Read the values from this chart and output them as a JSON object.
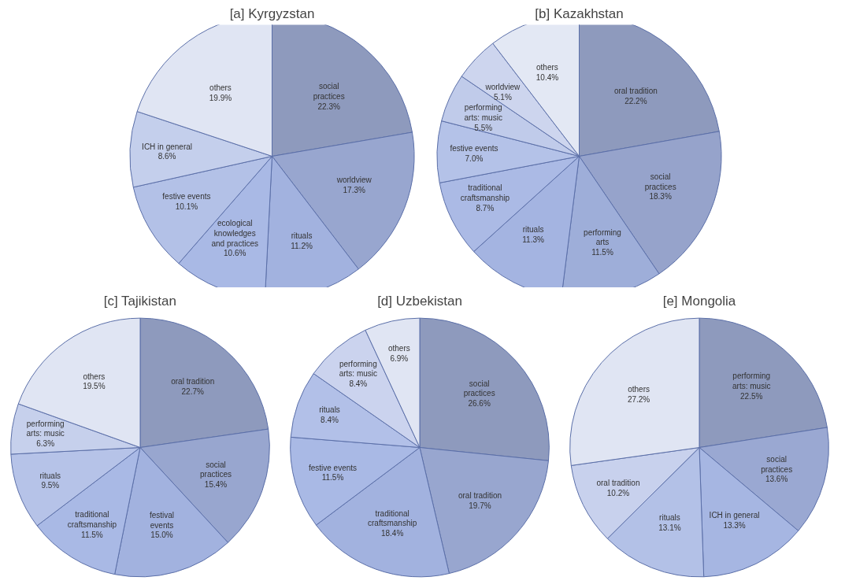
{
  "chart_data": [
    {
      "type": "pie",
      "title": "[a] Kyrgyzstan",
      "categories": [
        "social practices",
        "worldview",
        "rituals",
        "ecological knowledges and practices",
        "festive events",
        "ICH in general",
        "others"
      ],
      "values": [
        22.3,
        17.3,
        11.2,
        10.6,
        10.1,
        8.6,
        19.9
      ],
      "value_labels": [
        "22.3%",
        "17.3%",
        "11.2%",
        "10.6%",
        "10.1%",
        "8.6%",
        "19.9%"
      ],
      "colors": [
        "#8e9abd",
        "#98a6cf",
        "#a2b2df",
        "#a9b9e5",
        "#b3c1e7",
        "#c4cfec",
        "#e0e5f3"
      ]
    },
    {
      "type": "pie",
      "title": "[b] Kazakhstan",
      "categories": [
        "oral tradition",
        "social practices",
        "performing arts",
        "rituals",
        "traditional craftsmanship",
        "festive events",
        "performing arts: music",
        "worldview",
        "others"
      ],
      "values": [
        22.2,
        18.3,
        11.5,
        11.3,
        8.7,
        7.0,
        5.5,
        5.1,
        10.4
      ],
      "value_labels": [
        "22.2%",
        "18.3%",
        "11.5%",
        "11.3%",
        "8.7%",
        "7.0%",
        "5.5%",
        "5.1%",
        "10.4%"
      ],
      "colors": [
        "#8e9abd",
        "#96a3cb",
        "#9eaed9",
        "#a4b4e1",
        "#abbae5",
        "#b4c2e8",
        "#c0cbea",
        "#cdd5ee",
        "#e3e8f4"
      ]
    },
    {
      "type": "pie",
      "title": "[c] Tajikistan",
      "categories": [
        "oral tradition",
        "social practices",
        "festival events",
        "traditional craftsmanship",
        "rituals",
        "performing arts: music",
        "others"
      ],
      "values": [
        22.7,
        15.4,
        15.0,
        11.5,
        9.5,
        6.3,
        19.5
      ],
      "value_labels": [
        "22.7%",
        "15.4%",
        "15.0%",
        "11.5%",
        "9.5%",
        "6.3%",
        "19.5%"
      ],
      "colors": [
        "#8e9abd",
        "#98a6cf",
        "#a2b2df",
        "#a9b9e5",
        "#b6c3e8",
        "#c6d0ec",
        "#e0e5f3"
      ]
    },
    {
      "type": "pie",
      "title": "[d] Uzbekistan",
      "categories": [
        "social practices",
        "oral tradition",
        "traditional craftsmanship",
        "festive events",
        "rituals",
        "performing arts: music",
        "others"
      ],
      "values": [
        26.6,
        19.7,
        18.4,
        11.5,
        8.4,
        8.4,
        6.9
      ],
      "value_labels": [
        "26.6%",
        "19.7%",
        "18.4%",
        "11.5%",
        "8.4%",
        "8.4%",
        "6.9%"
      ],
      "colors": [
        "#8e9abd",
        "#98a6cf",
        "#a2b2df",
        "#a9b9e5",
        "#b2c0e8",
        "#cbd3ee",
        "#e0e5f3"
      ]
    },
    {
      "type": "pie",
      "title": "[e] Mongolia",
      "categories": [
        "performing arts: music",
        "social practices",
        "ICH in general",
        "rituals",
        "oral tradition",
        "others"
      ],
      "values": [
        22.5,
        13.6,
        13.3,
        13.1,
        10.2,
        27.2
      ],
      "value_labels": [
        "22.5%",
        "13.6%",
        "13.3%",
        "13.1%",
        "10.2%",
        "27.2%"
      ],
      "colors": [
        "#8e9abd",
        "#9aa8d2",
        "#a6b6e2",
        "#b3c1e7",
        "#c8d1ed",
        "#e0e5f3"
      ]
    }
  ]
}
